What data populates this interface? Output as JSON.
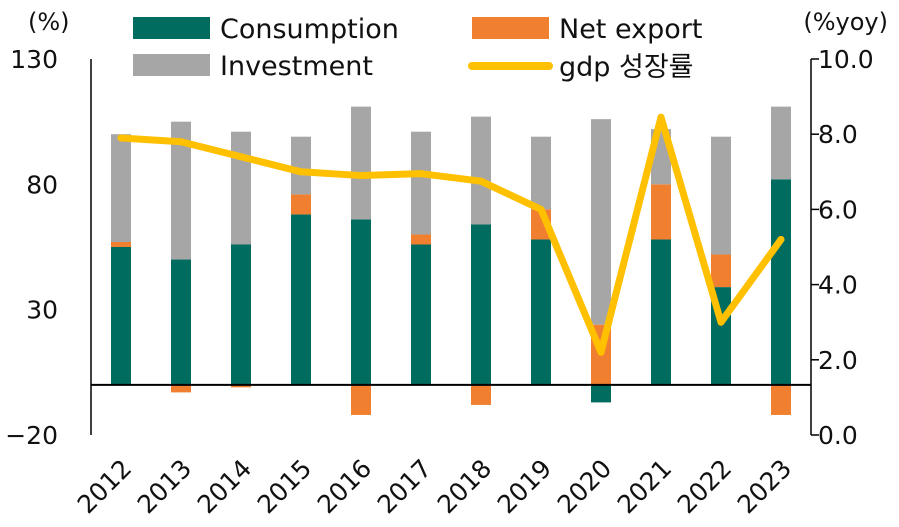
{
  "chart_data": {
    "type": "bar",
    "stacked": true,
    "categories": [
      "2012",
      "2013",
      "2014",
      "2015",
      "2016",
      "2017",
      "2018",
      "2019",
      "2020",
      "2021",
      "2022",
      "2023"
    ],
    "series": [
      {
        "name": "Consumption",
        "kind": "bar",
        "axis": "left",
        "color": "#006B5F",
        "values": [
          55,
          50,
          56,
          68,
          66,
          56,
          64,
          58,
          -7,
          58,
          39,
          82
        ]
      },
      {
        "name": "Net export",
        "kind": "bar",
        "axis": "left",
        "color": "#F08030",
        "values": [
          2,
          -3,
          -1,
          8,
          -12,
          4,
          -8,
          12,
          24,
          22,
          13,
          -12
        ]
      },
      {
        "name": "Investment",
        "kind": "bar",
        "axis": "left",
        "color": "#A6A6A6",
        "values": [
          43,
          55,
          45,
          23,
          45,
          41,
          43,
          29,
          82,
          22,
          47,
          29
        ]
      },
      {
        "name": "gdp 성장률",
        "kind": "line",
        "axis": "right",
        "color": "#FFC000",
        "values": [
          7.9,
          7.8,
          7.4,
          7.0,
          6.9,
          6.95,
          6.75,
          6.0,
          2.2,
          8.45,
          3.0,
          5.2
        ]
      }
    ],
    "left_axis": {
      "unit_label": "(%)",
      "ylim": [
        -20,
        130
      ],
      "ticks": [
        -20,
        30,
        80,
        130
      ],
      "tick_labels": [
        "−20",
        "30",
        "80",
        "130"
      ]
    },
    "right_axis": {
      "unit_label": "(%yoy)",
      "ylim": [
        0,
        10
      ],
      "ticks": [
        0,
        2,
        4,
        6,
        8,
        10
      ],
      "tick_labels": [
        "0.0",
        "2.0",
        "4.0",
        "6.0",
        "8.0",
        "10.0"
      ]
    },
    "zero_line": 0,
    "legend": {
      "placement": "top",
      "order": [
        "Consumption",
        "Net export",
        "Investment",
        "gdp 성장률"
      ]
    },
    "grid": false
  }
}
